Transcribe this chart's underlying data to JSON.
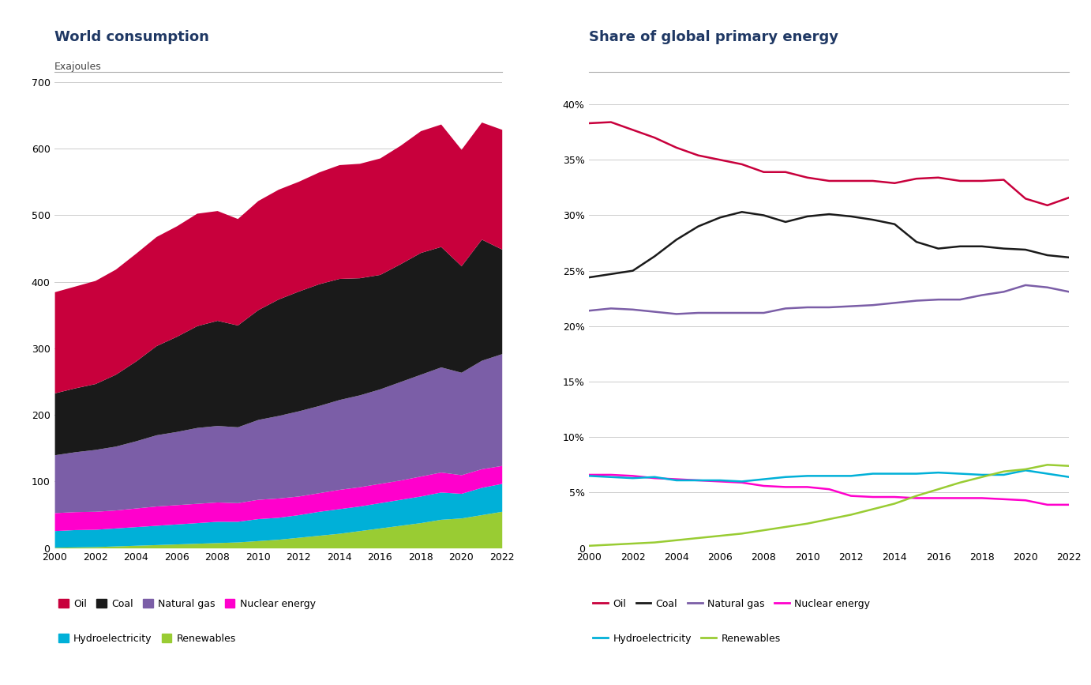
{
  "years": [
    2000,
    2001,
    2002,
    2003,
    2004,
    2005,
    2006,
    2007,
    2008,
    2009,
    2010,
    2011,
    2012,
    2013,
    2014,
    2015,
    2016,
    2017,
    2018,
    2019,
    2020,
    2021,
    2022
  ],
  "stack_renewables": [
    1,
    1.5,
    2,
    3,
    4,
    5,
    6,
    7,
    8,
    9,
    11,
    13,
    16,
    19,
    22,
    26,
    30,
    34,
    38,
    43,
    45,
    50,
    55
  ],
  "stack_hydro": [
    25,
    26,
    26,
    27,
    28,
    29,
    30,
    31,
    32,
    31,
    33,
    33,
    34,
    36,
    37,
    37,
    38,
    39,
    40,
    41,
    37,
    41,
    42
  ],
  "stack_nuclear": [
    27,
    27,
    27,
    27,
    28,
    29,
    29,
    29,
    29,
    28,
    29,
    29,
    28,
    28,
    29,
    29,
    29,
    29,
    30,
    30,
    28,
    28,
    27
  ],
  "stack_natgas": [
    87,
    90,
    93,
    96,
    101,
    107,
    110,
    114,
    115,
    114,
    120,
    124,
    128,
    131,
    135,
    138,
    142,
    148,
    153,
    158,
    154,
    163,
    168
  ],
  "stack_coal": [
    93,
    96,
    99,
    108,
    120,
    134,
    143,
    153,
    158,
    153,
    165,
    175,
    180,
    183,
    182,
    176,
    172,
    177,
    183,
    181,
    160,
    182,
    157
  ],
  "stack_oil": [
    152,
    153,
    155,
    158,
    162,
    164,
    166,
    169,
    165,
    160,
    164,
    165,
    165,
    168,
    171,
    172,
    175,
    178,
    183,
    184,
    175,
    176,
    180
  ],
  "share_oil": [
    38.3,
    38.4,
    37.7,
    37.0,
    36.1,
    35.4,
    35.0,
    34.6,
    33.9,
    33.9,
    33.4,
    33.1,
    33.1,
    33.1,
    32.9,
    33.3,
    33.4,
    33.1,
    33.1,
    33.2,
    31.5,
    30.9,
    31.6
  ],
  "share_coal": [
    24.4,
    24.7,
    25.0,
    26.3,
    27.8,
    29.0,
    29.8,
    30.3,
    30.0,
    29.4,
    29.9,
    30.1,
    29.9,
    29.6,
    29.2,
    27.6,
    27.0,
    27.2,
    27.2,
    27.0,
    26.9,
    26.4,
    26.2
  ],
  "share_natgas": [
    21.4,
    21.6,
    21.5,
    21.3,
    21.1,
    21.2,
    21.2,
    21.2,
    21.2,
    21.6,
    21.7,
    21.7,
    21.8,
    21.9,
    22.1,
    22.3,
    22.4,
    22.4,
    22.8,
    23.1,
    23.7,
    23.5,
    23.1
  ],
  "share_nuclear": [
    6.6,
    6.6,
    6.5,
    6.3,
    6.2,
    6.1,
    6.0,
    5.9,
    5.6,
    5.5,
    5.5,
    5.3,
    4.7,
    4.6,
    4.6,
    4.5,
    4.5,
    4.5,
    4.5,
    4.4,
    4.3,
    3.9,
    3.9
  ],
  "share_hydro": [
    6.5,
    6.4,
    6.3,
    6.4,
    6.1,
    6.1,
    6.1,
    6.0,
    6.2,
    6.4,
    6.5,
    6.5,
    6.5,
    6.7,
    6.7,
    6.7,
    6.8,
    6.7,
    6.6,
    6.6,
    7.0,
    6.7,
    6.4
  ],
  "share_renew": [
    0.2,
    0.3,
    0.4,
    0.5,
    0.7,
    0.9,
    1.1,
    1.3,
    1.6,
    1.9,
    2.2,
    2.6,
    3.0,
    3.5,
    4.0,
    4.7,
    5.3,
    5.9,
    6.4,
    6.9,
    7.1,
    7.5,
    7.4
  ],
  "colors": {
    "oil": "#c8003c",
    "coal": "#1a1a1a",
    "natgas": "#7b5ea7",
    "nuclear": "#ff00cc",
    "hydro": "#00b0d8",
    "renew": "#99cc33"
  },
  "title_left": "World consumption",
  "title_right": "Share of global primary energy",
  "ylabel_left": "Exajoules",
  "bg_color": "#ffffff",
  "grid_color": "#cccccc",
  "title_color": "#1f3864",
  "text_color": "#444444"
}
